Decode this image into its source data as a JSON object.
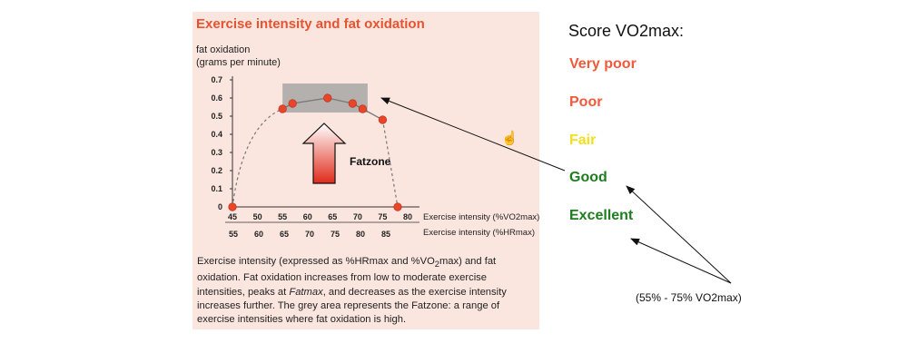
{
  "chart_data": {
    "type": "scatter",
    "title": "Exercise intensity and fat oxidation",
    "ylabel_lines": [
      "fat oxidation",
      "(grams per minute)"
    ],
    "xlabel": "Exercise intensity (%VO2max)",
    "xlabel2": "Exercise intensity (%HRmax)",
    "x_ticks": [
      45,
      50,
      55,
      60,
      65,
      70,
      75,
      80
    ],
    "x2_ticks": [
      55,
      60,
      65,
      70,
      75,
      80,
      85
    ],
    "y_ticks": [
      0,
      0.1,
      0.2,
      0.3,
      0.4,
      0.5,
      0.6,
      0.7
    ],
    "xlim": [
      45,
      80
    ],
    "ylim": [
      0,
      0.7
    ],
    "points": [
      {
        "x": 45,
        "y": 0
      },
      {
        "x": 55,
        "y": 0.54
      },
      {
        "x": 57,
        "y": 0.57
      },
      {
        "x": 64,
        "y": 0.6
      },
      {
        "x": 69,
        "y": 0.57
      },
      {
        "x": 71,
        "y": 0.54
      },
      {
        "x": 75,
        "y": 0.48
      },
      {
        "x": 78,
        "y": 0
      }
    ],
    "fatzone": {
      "x_range": [
        55,
        72
      ],
      "y_range": [
        0.52,
        0.68
      ]
    },
    "arrow_label": "Fatzone",
    "colors": {
      "point": "#e8452a",
      "title": "#e8522f",
      "zone": "#a6a6a6",
      "curve": "#777777"
    }
  },
  "caption": {
    "p1": "Exercise intensity (expressed as %HRmax and %VO",
    "sub1": "2",
    "p2": "max) and fat oxidation. Fat oxidation increases from low to moderate exercise intensities, peaks at ",
    "em": "Fatmax",
    "p3": ", and decreases as the exercise intensity increases further. The grey area represents the Fatzone: a range of exercise intensities where fat oxidation is high."
  },
  "score": {
    "title": "Score VO2max:",
    "levels": [
      {
        "label": "Very poor",
        "color": "#f05a3c"
      },
      {
        "label": "Poor",
        "color": "#f05a3c"
      },
      {
        "label": "Fair",
        "color": "#f2e01c"
      },
      {
        "label": "Good",
        "color": "#1e7d1e"
      },
      {
        "label": "Excellent",
        "color": "#1e7d1e"
      }
    ],
    "range_note": "(55% - 75% VO2max)"
  },
  "icons": {
    "cursor": "hand-cursor-icon"
  }
}
